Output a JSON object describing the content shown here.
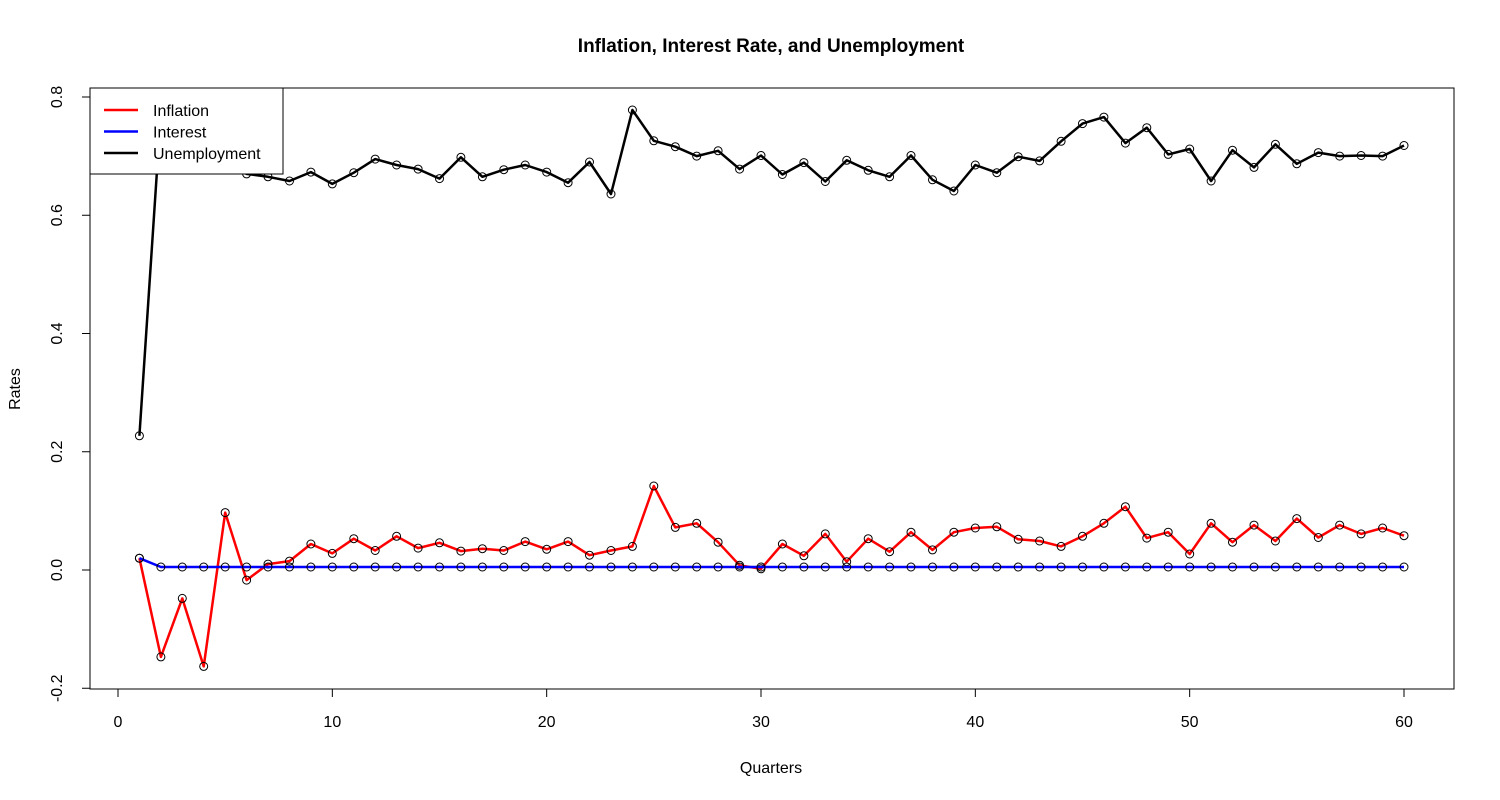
{
  "chart_data": {
    "type": "line",
    "title": "Inflation, Interest Rate, and Unemployment",
    "xlabel": "Quarters",
    "ylabel": "Rates",
    "xlim": [
      0,
      62.5
    ],
    "ylim": [
      -0.2,
      0.82
    ],
    "x_ticks": [
      0,
      10,
      20,
      30,
      40,
      50,
      60
    ],
    "y_ticks": [
      -0.2,
      0.0,
      0.2,
      0.4,
      0.6,
      0.8
    ],
    "x_tick_labels": [
      "0",
      "10",
      "20",
      "30",
      "40",
      "50",
      "60"
    ],
    "y_tick_labels": [
      "-0.2",
      "0.0",
      "0.2",
      "0.4",
      "0.6",
      "0.8"
    ],
    "grid": false,
    "legend_position": "top-left",
    "point_marker": "open-circle",
    "x": [
      1,
      2,
      3,
      4,
      5,
      6,
      7,
      8,
      9,
      10,
      11,
      12,
      13,
      14,
      15,
      16,
      17,
      18,
      19,
      20,
      21,
      22,
      23,
      24,
      25,
      26,
      27,
      28,
      29,
      30,
      31,
      32,
      33,
      34,
      35,
      36,
      37,
      38,
      39,
      40,
      41,
      42,
      43,
      44,
      45,
      46,
      47,
      48,
      49,
      50,
      51,
      52,
      53,
      54,
      55,
      56,
      57,
      58,
      59,
      60
    ],
    "series": [
      {
        "name": "Inflation",
        "color": "#ff0000",
        "values": [
          0.02,
          -0.147,
          -0.048,
          -0.163,
          0.097,
          -0.017,
          0.01,
          0.015,
          0.044,
          0.028,
          0.053,
          0.033,
          0.057,
          0.037,
          0.046,
          0.032,
          0.036,
          0.033,
          0.048,
          0.035,
          0.048,
          0.025,
          0.033,
          0.04,
          0.142,
          0.072,
          0.079,
          0.047,
          0.008,
          0.002,
          0.044,
          0.024,
          0.061,
          0.014,
          0.053,
          0.031,
          0.064,
          0.034,
          0.064,
          0.071,
          0.073,
          0.052,
          0.049,
          0.04,
          0.057,
          0.079,
          0.107,
          0.054,
          0.064,
          0.027,
          0.079,
          0.047,
          0.076,
          0.049,
          0.087,
          0.055,
          0.076,
          0.061,
          0.071,
          0.058
        ]
      },
      {
        "name": "Interest",
        "color": "#0000ff",
        "values": [
          0.02,
          0.005,
          0.005,
          0.005,
          0.005,
          0.005,
          0.005,
          0.005,
          0.005,
          0.005,
          0.005,
          0.005,
          0.005,
          0.005,
          0.005,
          0.005,
          0.005,
          0.005,
          0.005,
          0.005,
          0.005,
          0.005,
          0.005,
          0.005,
          0.005,
          0.005,
          0.005,
          0.005,
          0.005,
          0.005,
          0.005,
          0.005,
          0.005,
          0.005,
          0.005,
          0.005,
          0.005,
          0.005,
          0.005,
          0.005,
          0.005,
          0.005,
          0.005,
          0.005,
          0.005,
          0.005,
          0.005,
          0.005,
          0.005,
          0.005,
          0.005,
          0.005,
          0.005,
          0.005,
          0.005,
          0.005,
          0.005,
          0.005,
          0.005,
          0.005
        ]
      },
      {
        "name": "Unemployment",
        "color": "#000000",
        "values": [
          0.227,
          0.775,
          0.72,
          0.74,
          0.69,
          0.67,
          0.665,
          0.658,
          0.673,
          0.653,
          0.672,
          0.695,
          0.685,
          0.678,
          0.662,
          0.698,
          0.665,
          0.677,
          0.685,
          0.673,
          0.655,
          0.69,
          0.636,
          0.778,
          0.726,
          0.716,
          0.7,
          0.709,
          0.678,
          0.701,
          0.669,
          0.689,
          0.657,
          0.693,
          0.676,
          0.665,
          0.701,
          0.66,
          0.641,
          0.685,
          0.672,
          0.699,
          0.692,
          0.725,
          0.755,
          0.766,
          0.722,
          0.748,
          0.703,
          0.712,
          0.658,
          0.71,
          0.681,
          0.72,
          0.687,
          0.706,
          0.7,
          0.701,
          0.7,
          0.718
        ]
      }
    ]
  }
}
